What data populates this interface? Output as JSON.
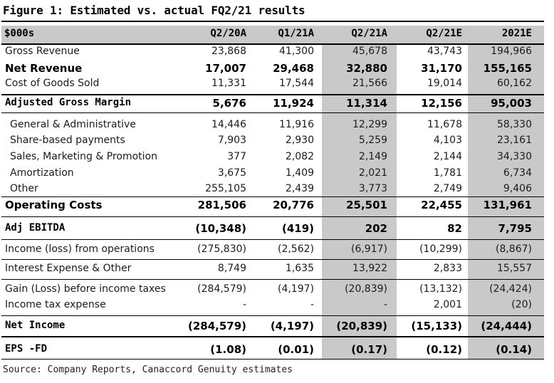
{
  "figure_title": "Figure 1: Estimated vs. actual FQ2/21 results",
  "header": {
    "label": "$000s",
    "columns": [
      "Q2/20A",
      "Q1/21A",
      "Q2/21A",
      "Q2/21E",
      "2021E"
    ]
  },
  "rows": [
    {
      "label": "Gross Revenue",
      "values": [
        "23,868",
        "41,300",
        "45,678",
        "43,743",
        "194,966"
      ]
    },
    {
      "label": "Net Revenue",
      "values": [
        "17,007",
        "29,468",
        "32,880",
        "31,170",
        "155,165"
      ]
    },
    {
      "label": "Cost of Goods Sold",
      "values": [
        "11,331",
        "17,544",
        "21,566",
        "19,014",
        "60,162"
      ]
    },
    {
      "label": "Adjusted Gross Margin",
      "values": [
        "5,676",
        "11,924",
        "11,314",
        "12,156",
        "95,003"
      ]
    },
    {
      "label": "General & Administrative",
      "values": [
        "14,446",
        "11,916",
        "12,299",
        "11,678",
        "58,330"
      ]
    },
    {
      "label": "Share-based payments",
      "values": [
        "7,903",
        "2,930",
        "5,259",
        "4,103",
        "23,161"
      ]
    },
    {
      "label": "Sales, Marketing & Promotion",
      "values": [
        "377",
        "2,082",
        "2,149",
        "2,144",
        "34,330"
      ]
    },
    {
      "label": "Amortization",
      "values": [
        "3,675",
        "1,409",
        "2,021",
        "1,781",
        "6,734"
      ]
    },
    {
      "label": "Other",
      "values": [
        "255,105",
        "2,439",
        "3,773",
        "2,749",
        "9,406"
      ]
    },
    {
      "label": "Operating Costs",
      "values": [
        "281,506",
        "20,776",
        "25,501",
        "22,455",
        "131,961"
      ]
    },
    {
      "label": "Adj EBITDA",
      "values": [
        "(10,348)",
        "(419)",
        "202",
        "82",
        "7,795"
      ]
    },
    {
      "label": "Income (loss) from operations",
      "values": [
        "(275,830)",
        "(2,562)",
        "(6,917)",
        "(10,299)",
        "(8,867)"
      ]
    },
    {
      "label": "Interest Expense & Other",
      "values": [
        "8,749",
        "1,635",
        "13,922",
        "2,833",
        "15,557"
      ]
    },
    {
      "label": "Gain (Loss) before income taxes",
      "values": [
        "(284,579)",
        "(4,197)",
        "(20,839)",
        "(13,132)",
        "(24,424)"
      ]
    },
    {
      "label": "Income tax expense",
      "values": [
        "-",
        "-",
        "-",
        "2,001",
        "(20)"
      ]
    },
    {
      "label": "Net Income",
      "values": [
        "(284,579)",
        "(4,197)",
        "(20,839)",
        "(15,133)",
        "(24,444)"
      ]
    },
    {
      "label": "EPS -FD",
      "values": [
        "(1.08)",
        "(0.01)",
        "(0.17)",
        "(0.12)",
        "(0.14)"
      ]
    }
  ],
  "source": "Source: Company Reports, Canaccord Genuity estimates",
  "colors": {
    "shade": "#c9c9c9",
    "rule": "#000000"
  }
}
